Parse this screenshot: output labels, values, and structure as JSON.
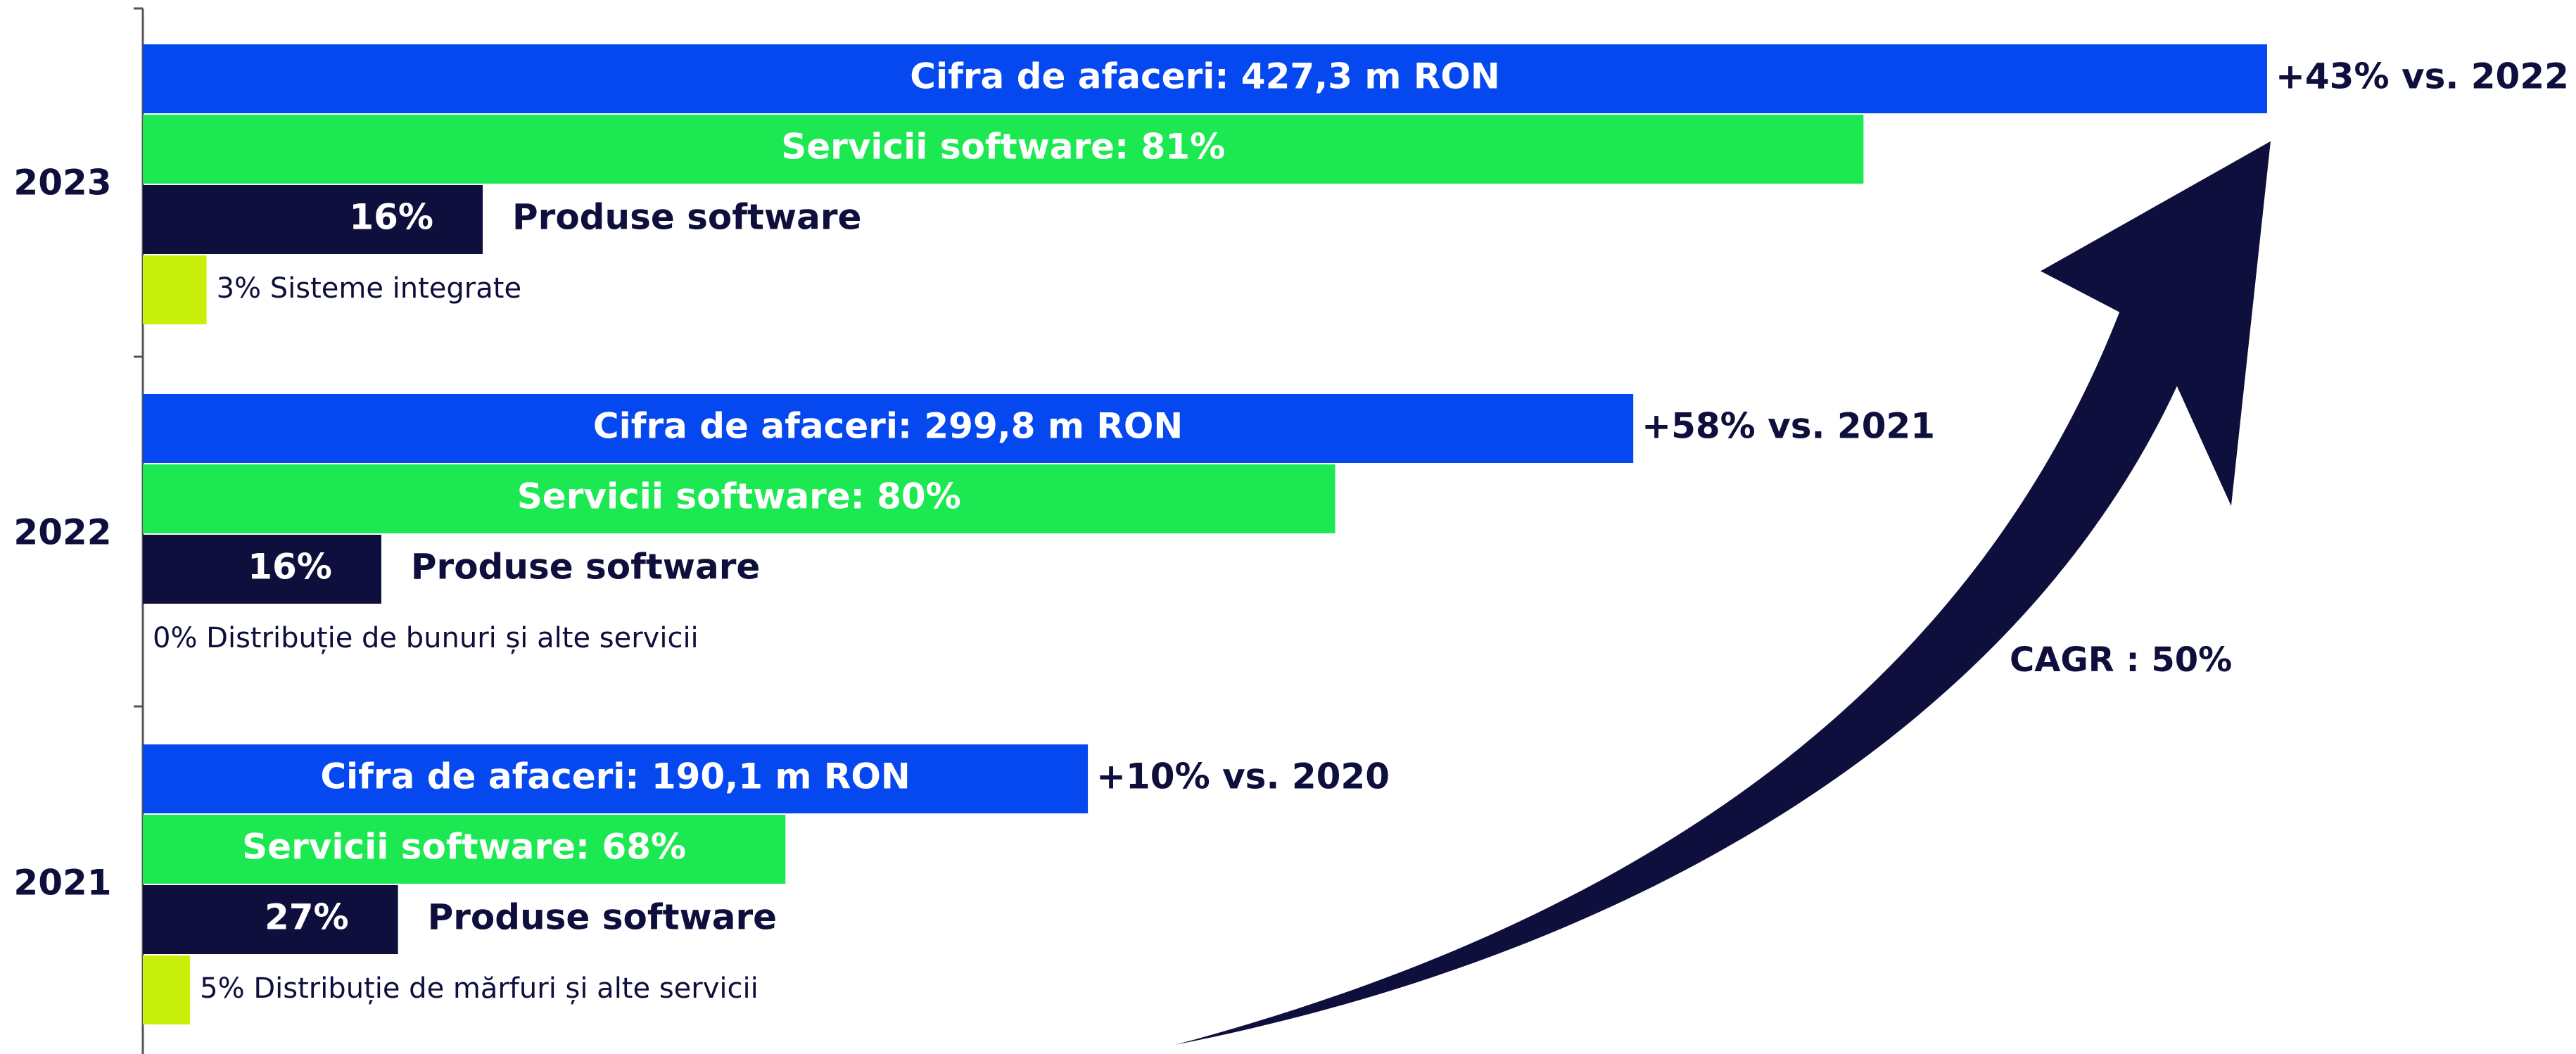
{
  "chart_data": {
    "type": "bar",
    "orientation": "horizontal",
    "categories": [
      "2023",
      "2022",
      "2021"
    ],
    "series": [
      {
        "color": "#0648f0",
        "values": [
          427.3,
          299.8,
          190.1
        ],
        "value_labels": [
          "Cifra de afaceri: 427,3 m RON",
          "Cifra de afaceri: 299,8 m RON",
          "Cifra de afaceri: 190,1 m RON"
        ]
      },
      {
        "color": "#1ce852",
        "values": [
          81,
          80,
          68
        ],
        "value_labels": [
          "Servicii software: 81%",
          "Servicii software: 80%",
          "Servicii software: 68%"
        ]
      },
      {
        "name": "Produse software",
        "color": "#0f0f3d",
        "values": [
          16,
          16,
          27
        ],
        "value_labels": [
          "16%",
          "16%",
          "27%"
        ]
      },
      {
        "color": "#c8f00a",
        "values": [
          3,
          0,
          5
        ],
        "value_labels": [
          "3% Sisteme integrate",
          "0% Distribuție de bunuri și alte servicii",
          "5% Distribuție de mărfuri și alte servicii"
        ]
      }
    ],
    "growth_labels": [
      "+43% vs. 2022",
      "+58% vs. 2021",
      "+10% vs. 2020"
    ],
    "cagr_label": "CAGR : 50%"
  }
}
